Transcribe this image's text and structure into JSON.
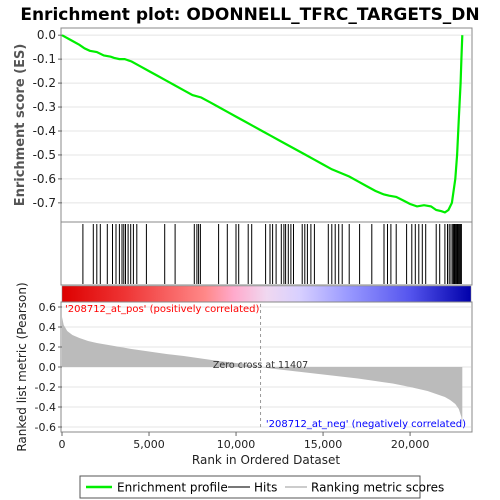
{
  "chart_data": {
    "type": "line",
    "title": "Enrichment plot: ODONNELL_TFRC_TARGETS_DN",
    "top_panel": {
      "ylabel": "Enrichment score (ES)",
      "ylim": [
        -0.78,
        0.03
      ],
      "yticks": [
        "0.0",
        "-0.1",
        "-0.2",
        "-0.3",
        "-0.4",
        "-0.5",
        "-0.6",
        "-0.7"
      ],
      "ytick_values": [
        0.0,
        -0.1,
        -0.2,
        -0.3,
        -0.4,
        -0.5,
        -0.6,
        -0.7
      ],
      "series": [
        {
          "name": "Enrichment profile",
          "color": "#00ee00",
          "x": [
            0,
            500,
            1000,
            1300,
            1600,
            2000,
            2400,
            2800,
            3000,
            3300,
            3600,
            4000,
            4500,
            5000,
            5500,
            6000,
            6500,
            7000,
            7500,
            8000,
            8500,
            9000,
            9500,
            10000,
            10500,
            11000,
            11500,
            12000,
            12500,
            13000,
            13500,
            14000,
            14500,
            15000,
            15500,
            16000,
            16500,
            17000,
            17500,
            18000,
            18500,
            18800,
            19200,
            19600,
            20000,
            20400,
            20800,
            21200,
            21500,
            21800,
            22000,
            22200,
            22400,
            22600,
            22700,
            22800,
            22900,
            22950,
            23000
          ],
          "y": [
            0.0,
            -0.02,
            -0.04,
            -0.055,
            -0.065,
            -0.07,
            -0.085,
            -0.09,
            -0.095,
            -0.1,
            -0.1,
            -0.11,
            -0.13,
            -0.15,
            -0.17,
            -0.19,
            -0.21,
            -0.23,
            -0.25,
            -0.26,
            -0.28,
            -0.3,
            -0.32,
            -0.34,
            -0.36,
            -0.38,
            -0.4,
            -0.42,
            -0.44,
            -0.46,
            -0.48,
            -0.5,
            -0.52,
            -0.54,
            -0.56,
            -0.575,
            -0.59,
            -0.61,
            -0.63,
            -0.65,
            -0.665,
            -0.67,
            -0.675,
            -0.69,
            -0.705,
            -0.715,
            -0.71,
            -0.715,
            -0.73,
            -0.735,
            -0.74,
            -0.73,
            -0.7,
            -0.6,
            -0.5,
            -0.35,
            -0.2,
            -0.1,
            0.0
          ]
        }
      ]
    },
    "hits_panel": {
      "series_name": "Hits",
      "hit_ranks": [
        1200,
        1800,
        2000,
        2200,
        2600,
        2900,
        3100,
        3300,
        3450,
        3550,
        3650,
        3800,
        3950,
        4100,
        4300,
        4850,
        5900,
        6500,
        7600,
        7750,
        7850,
        7950,
        9000,
        9500,
        10000,
        10150,
        10700,
        10900,
        11700,
        11950,
        12100,
        12300,
        12600,
        12750,
        12850,
        13000,
        13150,
        13300,
        13800,
        13950,
        14100,
        14300,
        14500,
        15300,
        15500,
        15700,
        15900,
        16100,
        16500,
        17100,
        17800,
        18500,
        18700,
        18900,
        19200,
        19800,
        20100,
        20300,
        20500,
        20700,
        20900,
        21500,
        21700,
        22000,
        22150,
        22250,
        22350,
        22450,
        22500,
        22550,
        22600,
        22650,
        22700,
        22750,
        22800,
        22850,
        22900,
        22950
      ]
    },
    "metric_panel": {
      "series_name": "Ranking metric scores",
      "ylabel": "Ranked list metric (Pearson)",
      "ylim": [
        -0.65,
        0.65
      ],
      "yticks": [
        "0.6",
        "0.4",
        "0.2",
        "0.0",
        "-0.2",
        "-0.4",
        "-0.6"
      ],
      "ytick_values": [
        0.6,
        0.4,
        0.2,
        0.0,
        -0.2,
        -0.4,
        -0.6
      ],
      "profile_x": [
        0,
        100,
        300,
        600,
        1000,
        1500,
        2000,
        3000,
        4000,
        5000,
        6000,
        7000,
        8000,
        9000,
        10000,
        11000,
        11407,
        12000,
        13000,
        14000,
        15000,
        16000,
        17000,
        18000,
        19000,
        20000,
        21000,
        21500,
        22000,
        22300,
        22600,
        22800,
        22950,
        23000
      ],
      "profile_y": [
        0.5,
        0.42,
        0.36,
        0.32,
        0.29,
        0.26,
        0.24,
        0.21,
        0.18,
        0.155,
        0.13,
        0.11,
        0.085,
        0.06,
        0.04,
        0.015,
        0.0,
        -0.015,
        -0.035,
        -0.055,
        -0.075,
        -0.095,
        -0.115,
        -0.14,
        -0.165,
        -0.2,
        -0.24,
        -0.27,
        -0.3,
        -0.33,
        -0.37,
        -0.42,
        -0.5,
        -0.6
      ],
      "zero_cross_label": "Zero cross at 11407",
      "zero_cross": 11407,
      "pos_label": "'208712_at_pos' (positively correlated)",
      "neg_label": "'208712_at_neg' (negatively correlated)",
      "pos_label_color": "#ff0000",
      "neg_label_color": "#0000ff"
    },
    "xaxis": {
      "xlabel": "Rank in Ordered Dataset",
      "xlim": [
        0,
        23500
      ],
      "xticks": [
        "0",
        "5,000",
        "10,000",
        "15,000",
        "20,000"
      ],
      "xtick_values": [
        0,
        5000,
        10000,
        15000,
        20000
      ]
    },
    "legend": {
      "placement": "bottom",
      "entries": [
        {
          "label": "Enrichment profile",
          "color": "#00ee00"
        },
        {
          "label": "Hits",
          "color": "#777777"
        },
        {
          "label": "Ranking metric scores",
          "color": "#cccccc"
        }
      ]
    }
  }
}
